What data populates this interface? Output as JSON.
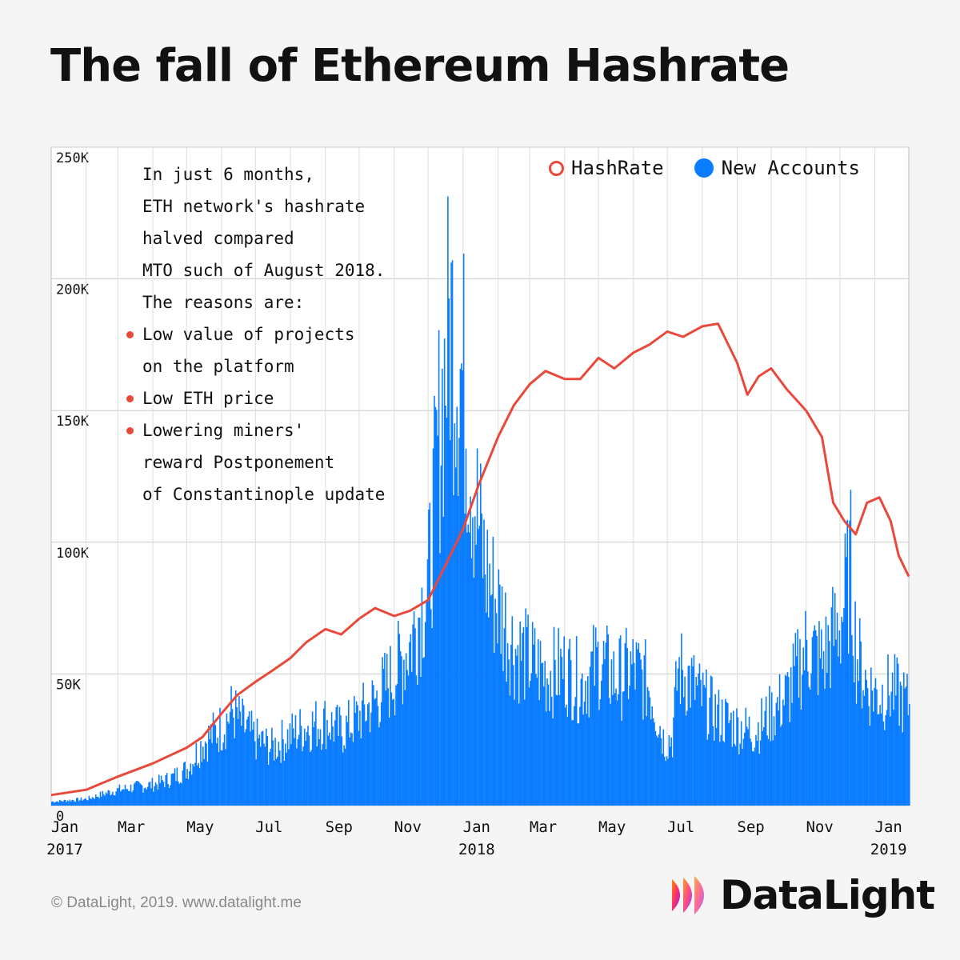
{
  "title": "The fall of Ethereum Hashrate",
  "annotation": {
    "lines": [
      {
        "text": "In just 6 months,",
        "bullet": false
      },
      {
        "text": "ETH network's hashrate",
        "bullet": false
      },
      {
        "text": "halved compared",
        "bullet": false
      },
      {
        "text": "MTO such of August 2018.",
        "bullet": false
      },
      {
        "text": "The reasons are:",
        "bullet": false
      },
      {
        "text": "Low value of projects",
        "bullet": true
      },
      {
        "text": "on the platform",
        "bullet": false
      },
      {
        "text": "Low ETH price",
        "bullet": true
      },
      {
        "text": "Lowering miners'",
        "bullet": true
      },
      {
        "text": "reward Postponement",
        "bullet": false
      },
      {
        "text": "of Constantinople update",
        "bullet": false
      }
    ]
  },
  "legend": {
    "hashrate_label": "HashRate",
    "accounts_label": "New Accounts"
  },
  "footer": "© DataLight, 2019. www.datalight.me",
  "logo": {
    "text": "DataLight"
  },
  "colors": {
    "hashrate": "#e8493b",
    "accounts": "#0a7cff",
    "overlap_line": "#1a1a2e",
    "grid": "#cccccc"
  },
  "chart_data": {
    "type": "bar",
    "y_ticks": [
      "0",
      "50K",
      "100K",
      "150K",
      "200K",
      "250K"
    ],
    "y_tick_values": [
      0,
      50000,
      100000,
      150000,
      200000,
      250000
    ],
    "ylim": [
      0,
      250000
    ],
    "x_ticks": [
      {
        "month": "Jan",
        "year": "2017"
      },
      {
        "month": "Mar",
        "year": ""
      },
      {
        "month": "May",
        "year": ""
      },
      {
        "month": "Jul",
        "year": ""
      },
      {
        "month": "Sep",
        "year": ""
      },
      {
        "month": "Nov",
        "year": ""
      },
      {
        "month": "Jan",
        "year": "2018"
      },
      {
        "month": "Mar",
        "year": ""
      },
      {
        "month": "May",
        "year": ""
      },
      {
        "month": "Jul",
        "year": ""
      },
      {
        "month": "Sep",
        "year": ""
      },
      {
        "month": "Nov",
        "year": ""
      },
      {
        "month": "Jan",
        "year": "2019"
      }
    ],
    "x_range": [
      "2017-01-01",
      "2019-01-31"
    ],
    "hashrate_series": {
      "name": "HashRate",
      "points": [
        [
          "2017-01-01",
          4000
        ],
        [
          "2017-02-01",
          6000
        ],
        [
          "2017-03-01",
          11000
        ],
        [
          "2017-04-01",
          16000
        ],
        [
          "2017-05-01",
          22000
        ],
        [
          "2017-05-15",
          26000
        ],
        [
          "2017-06-01",
          35000
        ],
        [
          "2017-06-15",
          42000
        ],
        [
          "2017-07-01",
          47000
        ],
        [
          "2017-07-15",
          51000
        ],
        [
          "2017-08-01",
          56000
        ],
        [
          "2017-08-15",
          62000
        ],
        [
          "2017-09-01",
          67000
        ],
        [
          "2017-09-15",
          65000
        ],
        [
          "2017-10-01",
          71000
        ],
        [
          "2017-10-15",
          75000
        ],
        [
          "2017-11-01",
          72000
        ],
        [
          "2017-11-15",
          74000
        ],
        [
          "2017-12-01",
          78000
        ],
        [
          "2017-12-15",
          90000
        ],
        [
          "2018-01-01",
          105000
        ],
        [
          "2018-01-15",
          122000
        ],
        [
          "2018-02-01",
          140000
        ],
        [
          "2018-02-15",
          152000
        ],
        [
          "2018-03-01",
          160000
        ],
        [
          "2018-03-15",
          165000
        ],
        [
          "2018-04-01",
          162000
        ],
        [
          "2018-04-15",
          162000
        ],
        [
          "2018-05-01",
          170000
        ],
        [
          "2018-05-15",
          166000
        ],
        [
          "2018-06-01",
          172000
        ],
        [
          "2018-06-15",
          175000
        ],
        [
          "2018-07-01",
          180000
        ],
        [
          "2018-07-15",
          178000
        ],
        [
          "2018-08-01",
          182000
        ],
        [
          "2018-08-15",
          183000
        ],
        [
          "2018-09-01",
          168000
        ],
        [
          "2018-09-10",
          156000
        ],
        [
          "2018-09-20",
          163000
        ],
        [
          "2018-10-01",
          166000
        ],
        [
          "2018-10-15",
          158000
        ],
        [
          "2018-11-01",
          150000
        ],
        [
          "2018-11-15",
          140000
        ],
        [
          "2018-11-25",
          115000
        ],
        [
          "2018-12-05",
          108000
        ],
        [
          "2018-12-15",
          103000
        ],
        [
          "2018-12-25",
          115000
        ],
        [
          "2019-01-05",
          117000
        ],
        [
          "2019-01-15",
          108000
        ],
        [
          "2019-01-22",
          95000
        ],
        [
          "2019-01-31",
          87000
        ]
      ]
    },
    "accounts_series": {
      "name": "New Accounts",
      "points": [
        [
          "2017-01-01",
          1500
        ],
        [
          "2017-02-01",
          2500
        ],
        [
          "2017-02-20",
          5000
        ],
        [
          "2017-03-01",
          6000
        ],
        [
          "2017-03-15",
          7000
        ],
        [
          "2017-04-01",
          8000
        ],
        [
          "2017-04-15",
          10000
        ],
        [
          "2017-05-01",
          14000
        ],
        [
          "2017-05-15",
          24000
        ],
        [
          "2017-06-01",
          30000
        ],
        [
          "2017-06-10",
          36000
        ],
        [
          "2017-06-20",
          30000
        ],
        [
          "2017-07-01",
          25000
        ],
        [
          "2017-07-15",
          22000
        ],
        [
          "2017-08-01",
          27000
        ],
        [
          "2017-08-15",
          30000
        ],
        [
          "2017-09-01",
          32000
        ],
        [
          "2017-09-15",
          28000
        ],
        [
          "2017-10-01",
          34000
        ],
        [
          "2017-10-15",
          40000
        ],
        [
          "2017-11-01",
          50000
        ],
        [
          "2017-11-15",
          62000
        ],
        [
          "2017-12-01",
          85000
        ],
        [
          "2017-12-10",
          140000
        ],
        [
          "2017-12-20",
          185000
        ],
        [
          "2018-01-01",
          160000
        ],
        [
          "2018-01-10",
          120000
        ],
        [
          "2018-01-20",
          90000
        ],
        [
          "2018-02-01",
          75000
        ],
        [
          "2018-02-15",
          60000
        ],
        [
          "2018-03-01",
          55000
        ],
        [
          "2018-03-15",
          50000
        ],
        [
          "2018-04-01",
          52000
        ],
        [
          "2018-04-15",
          46000
        ],
        [
          "2018-05-01",
          55000
        ],
        [
          "2018-05-15",
          48000
        ],
        [
          "2018-06-01",
          52000
        ],
        [
          "2018-06-15",
          45000
        ],
        [
          "2018-06-28",
          24000
        ],
        [
          "2018-07-05",
          26000
        ],
        [
          "2018-07-10",
          52000
        ],
        [
          "2018-07-20",
          48000
        ],
        [
          "2018-08-01",
          40000
        ],
        [
          "2018-08-15",
          34000
        ],
        [
          "2018-09-01",
          30000
        ],
        [
          "2018-09-15",
          28000
        ],
        [
          "2018-10-01",
          35000
        ],
        [
          "2018-10-15",
          42000
        ],
        [
          "2018-11-01",
          60000
        ],
        [
          "2018-11-15",
          55000
        ],
        [
          "2018-11-25",
          65000
        ],
        [
          "2018-12-01",
          70000
        ],
        [
          "2018-12-10",
          90000
        ],
        [
          "2018-12-15",
          58000
        ],
        [
          "2018-12-25",
          45000
        ],
        [
          "2019-01-05",
          42000
        ],
        [
          "2019-01-15",
          44000
        ],
        [
          "2019-01-31",
          38000
        ]
      ]
    }
  }
}
